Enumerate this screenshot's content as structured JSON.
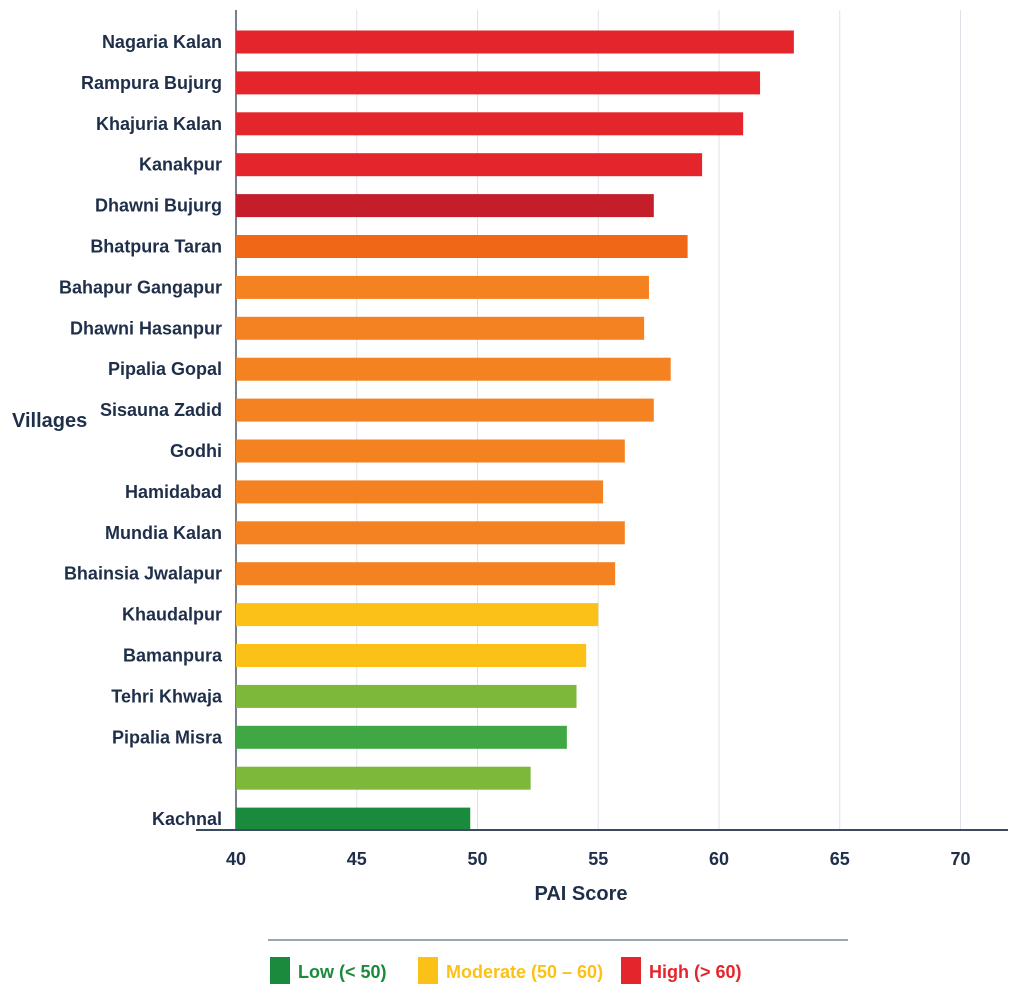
{
  "chart_data": {
    "type": "bar",
    "orientation": "horizontal",
    "title": "",
    "xlabel": "PAI Score",
    "ylabel": "Villages",
    "xlim": [
      40,
      72
    ],
    "xticks": [
      40,
      45,
      50,
      55,
      60,
      65,
      70
    ],
    "grid": "vertical",
    "legend_position": "bottom",
    "categories": [
      "Nagaria Kalan",
      "Rampura Bujurg",
      "Khajuria Kalan",
      "Kanakpur",
      "Dhawni Bujurg",
      "Bhatpura Taran",
      "Bahapur Gangapur",
      "Dhawni Hasanpur",
      "Pipalia Gopal",
      "Sisauna Zadid",
      "Godhi",
      "Hamidabad",
      "Mundia Kalan",
      "Bhainsia Jwalapur",
      "Khaudalpur",
      "Bamanpura",
      "Tehri Khwaja",
      "Pipalia Misra",
      "",
      "Kachnal"
    ],
    "values": [
      63.1,
      61.7,
      61.0,
      59.3,
      57.3,
      58.7,
      57.1,
      56.9,
      58.0,
      57.3,
      56.1,
      55.2,
      56.1,
      55.7,
      55.0,
      54.5,
      54.1,
      53.7,
      52.2,
      49.7
    ],
    "bar_colors": [
      "#e5252c",
      "#e5252c",
      "#e5252c",
      "#e5252c",
      "#c41e2a",
      "#f06718",
      "#f58220",
      "#f58220",
      "#f58220",
      "#f58220",
      "#f58220",
      "#f58220",
      "#f58220",
      "#f58220",
      "#fcc116",
      "#fcc116",
      "#7db83b",
      "#3fa844",
      "#7db83b",
      "#1a8a3c"
    ],
    "legend": [
      {
        "label": "Low (< 50)",
        "color": "#1a8a3c"
      },
      {
        "label": "Moderate (50 – 60)",
        "color": "#fcc116"
      },
      {
        "label": "High (> 60)",
        "color": "#e5252c"
      }
    ]
  }
}
